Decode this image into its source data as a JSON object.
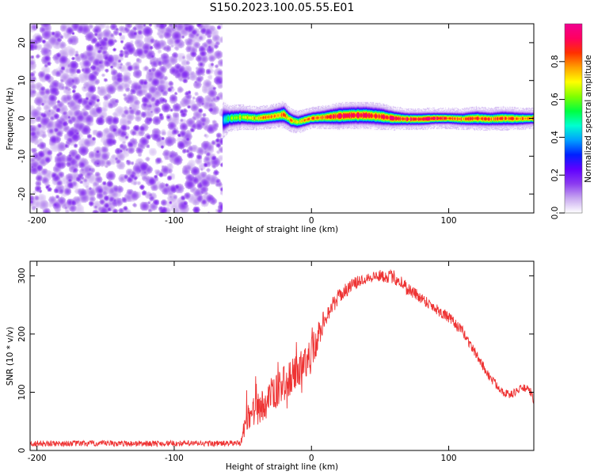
{
  "title": "S150.2023.100.05.55.E01",
  "chart_data": [
    {
      "type": "heatmap",
      "xlabel": "Height of straight line (km)",
      "ylabel": "Frequency (Hz)",
      "xlim": [
        -205,
        162
      ],
      "ylim": [
        -25,
        25
      ],
      "xticks": [
        -200,
        -100,
        0,
        100
      ],
      "yticks": [
        -20,
        -10,
        0,
        10,
        20
      ],
      "colorbar": {
        "label": "Normalized spectral amplitude",
        "range": [
          0,
          1
        ],
        "ticks": [
          "0.0",
          "0.2",
          "0.4",
          "0.6",
          "0.8"
        ],
        "colors": [
          "#ffffff",
          "#c8a8f0",
          "#8c3cf0",
          "#6000ff",
          "#0020ff",
          "#00a0ff",
          "#00ffd0",
          "#00ff40",
          "#80ff00",
          "#ffff00",
          "#ffa000",
          "#ff3000",
          "#ff0060",
          "#f00090"
        ]
      },
      "noise_region": {
        "x_range": [
          -205,
          -65
        ],
        "amplitude": 0.15
      },
      "signal_band": {
        "x": [
          -65,
          -60,
          -50,
          -40,
          -30,
          -20,
          -15,
          -10,
          0,
          10,
          20,
          30,
          40,
          50,
          60,
          70,
          80,
          90,
          100,
          110,
          120,
          130,
          140,
          150,
          162
        ],
        "center_hz": [
          -0.5,
          0.0,
          0.3,
          0.0,
          0.4,
          1.0,
          -0.5,
          -1.0,
          0.0,
          0.3,
          0.6,
          0.8,
          0.8,
          0.5,
          0.0,
          -0.2,
          -0.2,
          0.0,
          0.0,
          -0.2,
          0.0,
          -0.2,
          0.0,
          -0.1,
          0.0
        ],
        "halfwidth_hz": [
          3.0,
          1.8,
          1.6,
          1.5,
          1.5,
          1.8,
          1.5,
          1.4,
          1.3,
          1.5,
          1.8,
          1.8,
          1.8,
          1.8,
          1.5,
          1.3,
          1.3,
          1.2,
          1.2,
          1.3,
          1.5,
          1.4,
          1.5,
          1.4,
          1.2
        ],
        "peak": [
          0.35,
          0.55,
          0.7,
          0.75,
          0.78,
          0.8,
          0.75,
          0.7,
          0.8,
          0.85,
          0.9,
          0.95,
          0.95,
          0.9,
          0.9,
          0.92,
          0.92,
          0.9,
          0.88,
          0.85,
          0.85,
          0.83,
          0.82,
          0.8,
          0.8
        ]
      }
    },
    {
      "type": "line",
      "xlabel": "Height of straight line (km)",
      "ylabel": "SNR (10 * v/v)",
      "xlim": [
        -205,
        162
      ],
      "ylim": [
        0,
        325
      ],
      "xticks": [
        -200,
        -100,
        0,
        100
      ],
      "yticks": [
        0,
        100,
        200,
        300
      ],
      "series": [
        {
          "color": "#ee3333",
          "x": [
            -205,
            -150,
            -100,
            -60,
            -52,
            -48,
            -45,
            -40,
            -35,
            -30,
            -20,
            -10,
            0,
            10,
            20,
            30,
            40,
            50,
            60,
            65,
            70,
            80,
            90,
            100,
            110,
            120,
            130,
            140,
            145,
            150,
            155,
            160,
            162
          ],
          "y": [
            12,
            12,
            12,
            12,
            13,
            45,
            60,
            70,
            78,
            90,
            115,
            135,
            165,
            230,
            265,
            285,
            297,
            300,
            298,
            290,
            278,
            262,
            245,
            228,
            205,
            165,
            125,
            100,
            95,
            103,
            108,
            100,
            85
          ],
          "noise": [
            5,
            5,
            5,
            5,
            5,
            22,
            26,
            28,
            28,
            28,
            30,
            30,
            32,
            16,
            13,
            11,
            10,
            10,
            12,
            14,
            12,
            10,
            10,
            10,
            9,
            8,
            8,
            7,
            7,
            7,
            7,
            7,
            7
          ]
        }
      ]
    }
  ]
}
